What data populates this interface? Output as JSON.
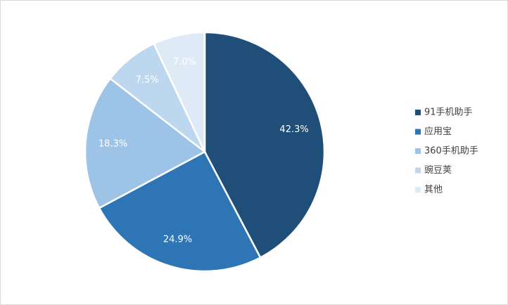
{
  "chart_data": {
    "type": "pie",
    "categories": [
      "91手机助手",
      "应用宝",
      "360手机助手",
      "豌豆荚",
      "其他"
    ],
    "values": [
      42.3,
      24.9,
      18.3,
      7.5,
      7.0
    ],
    "value_labels": [
      "42.3%",
      "24.9%",
      "18.3%",
      "7.5%",
      "7.0%"
    ],
    "colors": [
      "#1f4e79",
      "#2e75b6",
      "#9dc3e6",
      "#bdd7ee",
      "#deebf7"
    ],
    "legend": "right"
  }
}
